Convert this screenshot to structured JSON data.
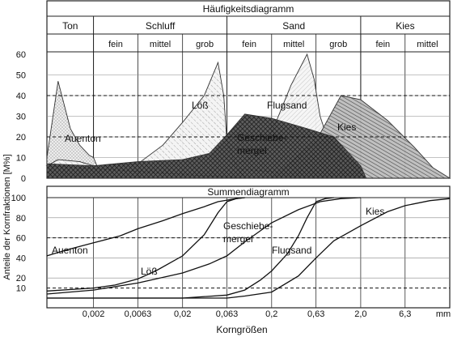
{
  "chart_data": [
    {
      "type": "area",
      "title": "Häufigkeitsdiagramm",
      "x_scale": "log",
      "x_unit": "mm",
      "ylim": [
        0,
        60
      ],
      "yticks": [
        "0",
        "10",
        "20",
        "30",
        "40",
        "50",
        "60"
      ],
      "reference_lines": [
        40,
        20
      ],
      "fractions": {
        "main": [
          {
            "label": "Ton",
            "range": [
              0.0006,
              0.002
            ]
          },
          {
            "label": "Schluff",
            "range": [
              0.002,
              0.063
            ]
          },
          {
            "label": "Sand",
            "range": [
              0.063,
              2
            ]
          },
          {
            "label": "Kies",
            "range": [
              2,
              20
            ]
          }
        ],
        "sub": [
          {
            "label": "fein",
            "range": [
              0.002,
              0.0063
            ]
          },
          {
            "label": "mittel",
            "range": [
              0.0063,
              0.02
            ]
          },
          {
            "label": "grob",
            "range": [
              0.02,
              0.063
            ]
          },
          {
            "label": "fein",
            "range": [
              0.063,
              0.2
            ]
          },
          {
            "label": "mittel",
            "range": [
              0.2,
              0.63
            ]
          },
          {
            "label": "grob",
            "range": [
              0.63,
              2
            ]
          },
          {
            "label": "fein",
            "range": [
              2,
              6.3
            ]
          },
          {
            "label": "mittel",
            "range": [
              6.3,
              20
            ]
          }
        ]
      },
      "series": [
        {
          "name": "Auenton",
          "points": [
            [
              0.0006,
              0
            ],
            [
              0.0006,
              10
            ],
            [
              0.0008,
              47
            ],
            [
              0.0011,
              24
            ],
            [
              0.0014,
              16
            ],
            [
              0.0018,
              11
            ],
            [
              0.002,
              10
            ],
            [
              0.0025,
              0
            ]
          ]
        },
        {
          "name": "Löß",
          "points": [
            [
              0.0006,
              6
            ],
            [
              0.0008,
              9
            ],
            [
              0.0014,
              8
            ],
            [
              0.002,
              6
            ],
            [
              0.0063,
              7
            ],
            [
              0.012,
              16
            ],
            [
              0.02,
              27
            ],
            [
              0.035,
              40
            ],
            [
              0.05,
              56
            ],
            [
              0.058,
              40
            ],
            [
              0.063,
              18
            ],
            [
              0.08,
              6
            ],
            [
              0.1,
              0
            ]
          ]
        },
        {
          "name": "Flugsand",
          "points": [
            [
              0.063,
              5
            ],
            [
              0.12,
              10
            ],
            [
              0.2,
              22
            ],
            [
              0.33,
              45
            ],
            [
              0.5,
              60
            ],
            [
              0.6,
              48
            ],
            [
              0.7,
              30
            ],
            [
              1,
              10
            ],
            [
              1.4,
              0
            ]
          ]
        },
        {
          "name": "Geschiebemergel",
          "points": [
            [
              0.0006,
              0
            ],
            [
              0.0006,
              7
            ],
            [
              0.002,
              6
            ],
            [
              0.0063,
              8
            ],
            [
              0.02,
              9
            ],
            [
              0.04,
              12
            ],
            [
              0.063,
              21
            ],
            [
              0.1,
              31
            ],
            [
              0.2,
              29
            ],
            [
              0.5,
              24
            ],
            [
              1,
              20
            ],
            [
              2,
              6
            ],
            [
              2.3,
              0
            ]
          ]
        },
        {
          "name": "Kies",
          "points": [
            [
              0.2,
              0
            ],
            [
              0.63,
              18
            ],
            [
              1.2,
              40
            ],
            [
              2,
              38
            ],
            [
              4,
              28
            ],
            [
              8,
              15
            ],
            [
              13,
              5
            ],
            [
              20,
              0
            ]
          ]
        }
      ],
      "annotations": [
        "Auenton",
        "Löß",
        "Flugsand",
        "Geschiebe-",
        "mergel",
        "Kies"
      ]
    },
    {
      "type": "line",
      "title": "Summendiagramm",
      "x_scale": "log",
      "xlabel": "Korngrößen",
      "x_unit": "mm",
      "ylabel": "Anteile der Kornfraktionen [M%]",
      "ylim": [
        0,
        100
      ],
      "yticks": [
        "10",
        "20",
        "40",
        "60",
        "80",
        "100"
      ],
      "xticks": [
        "0,002",
        "0,0063",
        "0,02",
        "0,063",
        "0,2",
        "0,63",
        "2,0",
        "6,3"
      ],
      "reference_lines": [
        60,
        10
      ],
      "series": [
        {
          "name": "Auenton",
          "points": [
            [
              0.0006,
              42
            ],
            [
              0.001,
              48
            ],
            [
              0.002,
              55
            ],
            [
              0.004,
              62
            ],
            [
              0.0063,
              69
            ],
            [
              0.012,
              77
            ],
            [
              0.02,
              84
            ],
            [
              0.035,
              91
            ],
            [
              0.05,
              96
            ],
            [
              0.08,
              99
            ],
            [
              0.1,
              100
            ]
          ]
        },
        {
          "name": "Löß",
          "points": [
            [
              0.0006,
              7
            ],
            [
              0.002,
              10
            ],
            [
              0.0035,
              13
            ],
            [
              0.0063,
              19
            ],
            [
              0.01,
              27
            ],
            [
              0.02,
              42
            ],
            [
              0.035,
              63
            ],
            [
              0.05,
              85
            ],
            [
              0.063,
              96
            ],
            [
              0.08,
              99
            ],
            [
              0.1,
              100
            ]
          ]
        },
        {
          "name": "Geschiebemergel",
          "points": [
            [
              0.0006,
              4
            ],
            [
              0.002,
              8
            ],
            [
              0.0063,
              15
            ],
            [
              0.02,
              25
            ],
            [
              0.04,
              34
            ],
            [
              0.063,
              42
            ],
            [
              0.1,
              56
            ],
            [
              0.2,
              75
            ],
            [
              0.4,
              88
            ],
            [
              0.7,
              96
            ],
            [
              1.2,
              99
            ],
            [
              2,
              100
            ]
          ]
        },
        {
          "name": "Flugsand",
          "points": [
            [
              0.0006,
              0
            ],
            [
              0.02,
              0
            ],
            [
              0.063,
              3
            ],
            [
              0.1,
              8
            ],
            [
              0.15,
              18
            ],
            [
              0.2,
              27
            ],
            [
              0.3,
              44
            ],
            [
              0.4,
              62
            ],
            [
              0.5,
              80
            ],
            [
              0.63,
              96
            ],
            [
              0.8,
              99
            ],
            [
              1,
              100
            ]
          ]
        },
        {
          "name": "Kies",
          "points": [
            [
              0.0006,
              0
            ],
            [
              0.063,
              0
            ],
            [
              0.1,
              2
            ],
            [
              0.2,
              6
            ],
            [
              0.4,
              22
            ],
            [
              0.63,
              40
            ],
            [
              1,
              57
            ],
            [
              2,
              72
            ],
            [
              4,
              86
            ],
            [
              6.3,
              92
            ],
            [
              12,
              97
            ],
            [
              20,
              99
            ]
          ]
        }
      ],
      "annotations": [
        "Auenton",
        "Löß",
        "Geschiebe-",
        "mergel",
        "Flugsand",
        "Kies"
      ]
    }
  ]
}
